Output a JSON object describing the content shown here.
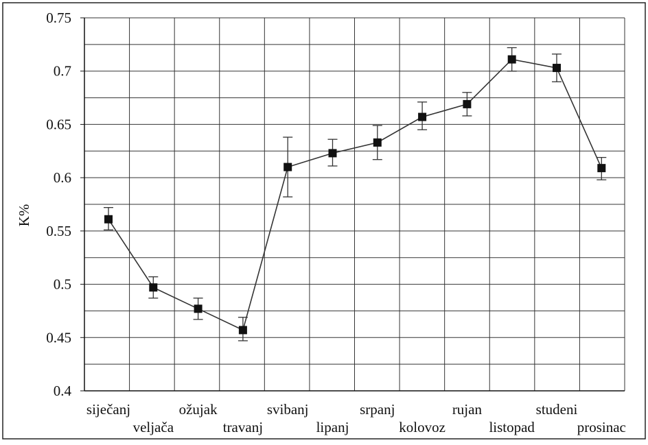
{
  "chart_data": {
    "type": "line",
    "title": "",
    "xlabel": "",
    "ylabel": "K%",
    "ylim": [
      0.4,
      0.75
    ],
    "yticks": [
      "0.4",
      "0.45",
      "0.5",
      "0.55",
      "0.6",
      "0.65",
      "0.7",
      "0.75"
    ],
    "grid": true,
    "categories": [
      "siječanj",
      "veljača",
      "ožujak",
      "travanj",
      "svibanj",
      "lipanj",
      "srpanj",
      "kolovoz",
      "rujan",
      "listopad",
      "studeni",
      "prosinac"
    ],
    "series": [
      {
        "values": [
          0.561,
          0.497,
          0.477,
          0.457,
          0.61,
          0.623,
          0.633,
          0.657,
          0.669,
          0.711,
          0.703,
          0.609
        ],
        "error_low": [
          0.551,
          0.487,
          0.467,
          0.447,
          0.582,
          0.611,
          0.617,
          0.645,
          0.658,
          0.7,
          0.69,
          0.598
        ],
        "error_high": [
          0.572,
          0.507,
          0.487,
          0.469,
          0.638,
          0.636,
          0.649,
          0.671,
          0.68,
          0.722,
          0.716,
          0.619
        ]
      }
    ],
    "colors": {
      "line": "#333333",
      "marker": "#111111",
      "grid": "#333333",
      "frame": "#222222"
    }
  }
}
